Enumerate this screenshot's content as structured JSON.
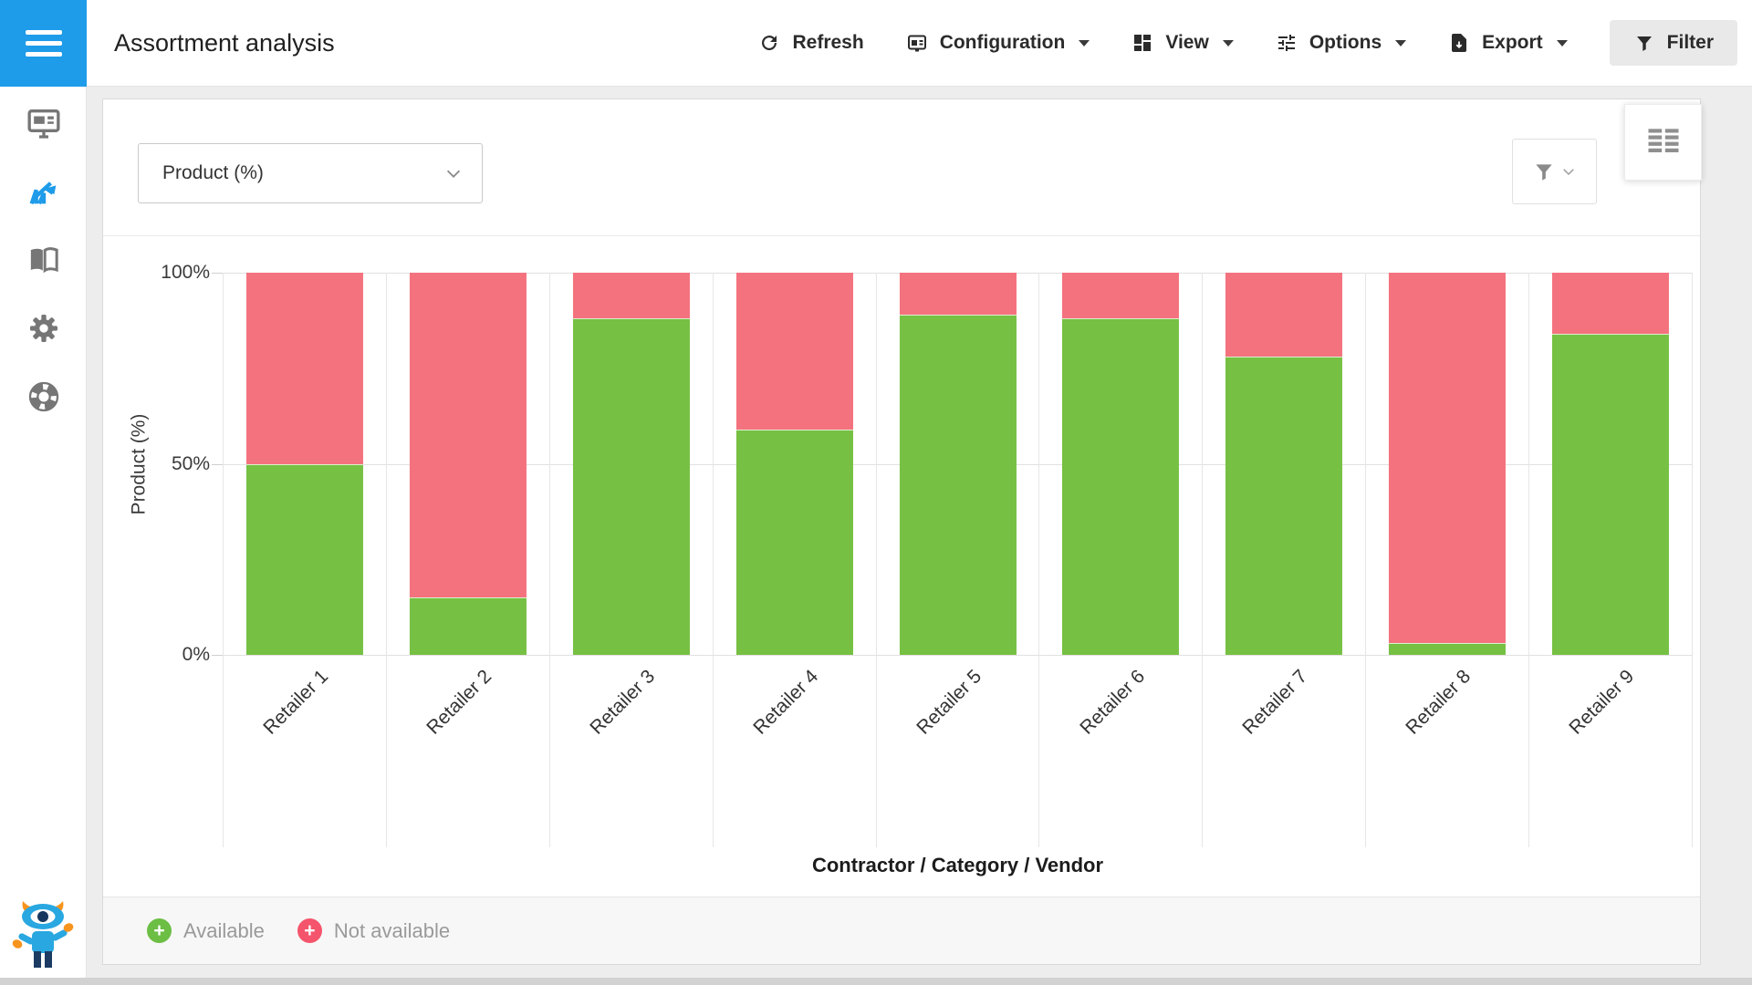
{
  "header": {
    "title": "Assortment analysis"
  },
  "toolbar": {
    "items": [
      {
        "label": "Refresh",
        "icon": "refresh-icon",
        "has_dropdown": false
      },
      {
        "label": "Configuration",
        "icon": "configuration-icon",
        "has_dropdown": true
      },
      {
        "label": "View",
        "icon": "view-icon",
        "has_dropdown": true
      },
      {
        "label": "Options",
        "icon": "options-icon",
        "has_dropdown": true
      },
      {
        "label": "Export",
        "icon": "export-icon",
        "has_dropdown": true
      },
      {
        "label": "Filter",
        "icon": "filter-icon",
        "has_dropdown": false,
        "active": true
      }
    ]
  },
  "sidebar": {
    "accent_color": "#1E9BE9",
    "items": [
      {
        "icon": "dashboard-icon",
        "active": false
      },
      {
        "icon": "analytics-icon",
        "active": true
      },
      {
        "icon": "catalog-icon",
        "active": false
      },
      {
        "icon": "settings-icon",
        "active": false
      },
      {
        "icon": "support-icon",
        "active": false
      }
    ],
    "mascot": "assistant-mascot"
  },
  "panel": {
    "dimension_select": {
      "value": "Product (%)"
    },
    "filter_button": {
      "icon": "funnel-icon"
    },
    "view_toggle": {
      "icon": "list-grid-icon"
    }
  },
  "chart_data": {
    "type": "bar",
    "stacked": true,
    "unit": "percent",
    "categories": [
      "Retailer 1",
      "Retailer 2",
      "Retailer 3",
      "Retailer 4",
      "Retailer 5",
      "Retailer 6",
      "Retailer 7",
      "Retailer 8",
      "Retailer 9"
    ],
    "series": [
      {
        "name": "Available",
        "color": "#76C043",
        "values": [
          50,
          15,
          88,
          59,
          89,
          88,
          78,
          3,
          84
        ]
      },
      {
        "name": "Not available",
        "color": "#F4727E",
        "values": [
          50,
          85,
          12,
          41,
          11,
          12,
          22,
          97,
          16
        ]
      }
    ],
    "title": "",
    "xlabel": "Contractor / Category / Vendor",
    "ylabel": "Product (%)",
    "ylim": [
      0,
      100
    ],
    "yticks": [
      0,
      50,
      100
    ],
    "ytick_labels": [
      "0%",
      "50%",
      "100%"
    ],
    "grid": true,
    "legend_position": "bottom"
  },
  "legend": {
    "items": [
      {
        "label": "Available",
        "color": "#6CBE44",
        "symbol": "plus-circle-icon"
      },
      {
        "label": "Not available",
        "color": "#F4556C",
        "symbol": "plus-circle-icon"
      }
    ]
  }
}
